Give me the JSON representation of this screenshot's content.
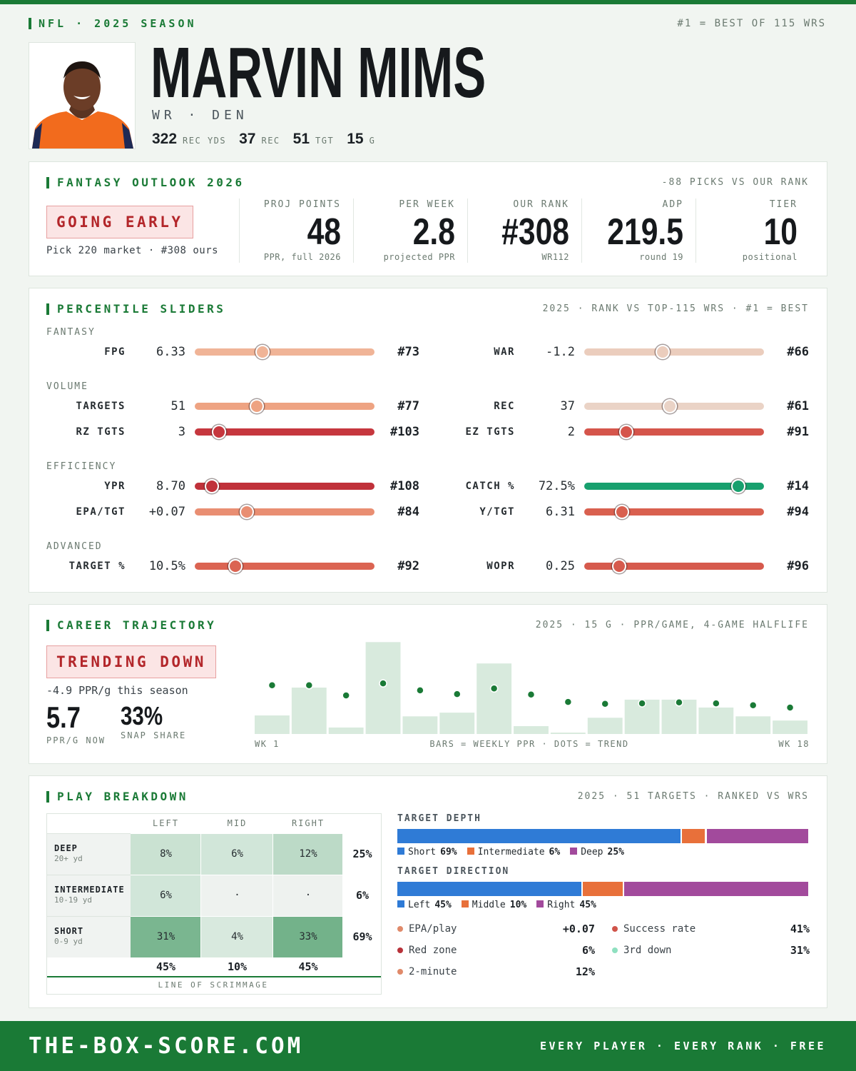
{
  "header": {
    "league": "NFL · 2025 SEASON",
    "scale_note": "#1 = BEST OF 115 WRS",
    "name": "MARVIN MIMS",
    "position": "WR · DEN",
    "stats": [
      {
        "value": "322",
        "label": "REC YDS"
      },
      {
        "value": "37",
        "label": "REC"
      },
      {
        "value": "51",
        "label": "TGT"
      },
      {
        "value": "15",
        "label": "G"
      }
    ]
  },
  "outlook": {
    "title": "FANTASY OUTLOOK 2026",
    "note": "-88 PICKS VS OUR RANK",
    "badge": "GOING EARLY",
    "badge_sub": "Pick 220 market · #308 ours",
    "metrics": [
      {
        "label": "PROJ POINTS",
        "value": "48",
        "sub": "PPR, full 2026"
      },
      {
        "label": "PER WEEK",
        "value": "2.8",
        "sub": "projected PPR"
      },
      {
        "label": "OUR RANK",
        "value": "#308",
        "sub": "WR112"
      },
      {
        "label": "ADP",
        "value": "219.5",
        "sub": "round 19"
      },
      {
        "label": "TIER",
        "value": "10",
        "sub": "positional"
      }
    ]
  },
  "sliders": {
    "title": "PERCENTILE SLIDERS",
    "note": "2025 · RANK VS TOP-115 WRS · #1 = BEST",
    "xlim": [
      115,
      1
    ],
    "groups": [
      {
        "name": "FANTASY",
        "rows": [
          [
            {
              "label": "FPG",
              "value": "6.33",
              "rank": {
                "value": 73,
                "label": "#73"
              },
              "color": "#f0b497"
            },
            {
              "label": "WAR",
              "value": "-1.2",
              "rank": {
                "value": 66,
                "label": "#66"
              },
              "color": "#ebcdbd"
            }
          ]
        ]
      },
      {
        "name": "VOLUME",
        "rows": [
          [
            {
              "label": "TARGETS",
              "value": "51",
              "rank": {
                "value": 77,
                "label": "#77"
              },
              "color": "#eea382"
            },
            {
              "label": "REC",
              "value": "37",
              "rank": {
                "value": 61,
                "label": "#61"
              },
              "color": "#ead3c6"
            }
          ],
          [
            {
              "label": "RZ TGTS",
              "value": "3",
              "rank": {
                "value": 103,
                "label": "#103"
              },
              "color": "#c6373e"
            },
            {
              "label": "EZ TGTS",
              "value": "2",
              "rank": {
                "value": 91,
                "label": "#91"
              },
              "color": "#d5554b"
            }
          ]
        ]
      },
      {
        "name": "EFFICIENCY",
        "rows": [
          [
            {
              "label": "YPR",
              "value": "8.70",
              "rank": {
                "value": 108,
                "label": "#108"
              },
              "color": "#c0313a"
            },
            {
              "label": "CATCH %",
              "value": "72.5%",
              "rank": {
                "value": 14,
                "label": "#14"
              },
              "color": "#18a06e"
            }
          ],
          [
            {
              "label": "EPA/TGT",
              "value": "+0.07",
              "rank": {
                "value": 84,
                "label": "#84"
              },
              "color": "#e98e72"
            },
            {
              "label": "Y/TGT",
              "value": "6.31",
              "rank": {
                "value": 94,
                "label": "#94"
              },
              "color": "#d9604f"
            }
          ]
        ]
      },
      {
        "name": "ADVANCED",
        "rows": [
          [
            {
              "label": "TARGET %",
              "value": "10.5%",
              "rank": {
                "value": 92,
                "label": "#92"
              },
              "color": "#db6452"
            },
            {
              "label": "WOPR",
              "value": "0.25",
              "rank": {
                "value": 96,
                "label": "#96"
              },
              "color": "#d65a4d"
            }
          ]
        ]
      }
    ]
  },
  "career": {
    "title": "CAREER TRAJECTORY",
    "note": "2025 · 15 G · PPR/GAME, 4-GAME HALFLIFE",
    "badge": "TRENDING DOWN",
    "change": "-4.9 PPR/g this season",
    "now": {
      "value": "5.7",
      "label": "PPR/G NOW"
    },
    "snap": {
      "value": "33%",
      "label": "SNAP SHARE"
    },
    "chart_data": {
      "type": "bar",
      "categories": [
        "WK 1",
        null,
        null,
        null,
        null,
        null,
        null,
        null,
        null,
        null,
        null,
        null,
        null,
        null,
        "WK 18"
      ],
      "x_note": "BARS = WEEKLY PPR · DOTS = TREND",
      "values": [
        4.0,
        10.0,
        1.4,
        19.8,
        3.8,
        4.6,
        15.2,
        1.7,
        0.3,
        3.5,
        7.4,
        7.4,
        5.7,
        3.8,
        2.9
      ],
      "trend": [
        10.5,
        10.5,
        8.3,
        10.9,
        9.4,
        8.6,
        9.8,
        8.5,
        6.9,
        6.5,
        6.6,
        6.8,
        6.6,
        6.2,
        5.7
      ],
      "color": "#d8eadd",
      "trend_color": "#1a7a36",
      "ylim": [
        0,
        20
      ]
    }
  },
  "breakdown": {
    "title": "PLAY BREAKDOWN",
    "note": "2025 · 51 TARGETS · RANKED VS WRS",
    "table": {
      "columns": [
        "LEFT",
        "MID",
        "RIGHT"
      ],
      "rows": [
        {
          "name": "DEEP",
          "sub": "20+ yd",
          "cells": [
            "8%",
            "6%",
            "12%"
          ],
          "total": "25%"
        },
        {
          "name": "INTERMEDIATE",
          "sub": "10-19 yd",
          "cells": [
            "6%",
            "·",
            "·"
          ],
          "total": "6%"
        },
        {
          "name": "SHORT",
          "sub": "0-9 yd",
          "cells": [
            "31%",
            "4%",
            "33%"
          ],
          "total": "69%"
        }
      ],
      "column_totals": [
        "45%",
        "10%",
        "45%"
      ],
      "footer": "LINE OF SCRIMMAGE"
    },
    "bars": [
      {
        "title": "TARGET DEPTH",
        "segments": [
          {
            "name": "Short",
            "value": 69,
            "label": "69%",
            "color": "#2f7bd6"
          },
          {
            "name": "Intermediate",
            "value": 6,
            "label": "6%",
            "color": "#e8703a"
          },
          {
            "name": "Deep",
            "value": 25,
            "label": "25%",
            "color": "#a24a9c"
          }
        ]
      },
      {
        "title": "TARGET DIRECTION",
        "segments": [
          {
            "name": "Left",
            "value": 45,
            "label": "45%",
            "color": "#2f7bd6"
          },
          {
            "name": "Middle",
            "value": 10,
            "label": "10%",
            "color": "#e8703a"
          },
          {
            "name": "Right",
            "value": 45,
            "label": "45%",
            "color": "#a24a9c"
          }
        ]
      }
    ],
    "stats": [
      {
        "label": "EPA/play",
        "value": "+0.07",
        "color": "#e08a6a"
      },
      {
        "label": "Success rate",
        "value": "41%",
        "color": "#d0544a"
      },
      {
        "label": "Red zone",
        "value": "6%",
        "color": "#b8323a"
      },
      {
        "label": "3rd down",
        "value": "31%",
        "color": "#8fe0c0"
      },
      {
        "label": "2-minute",
        "value": "12%",
        "color": "#e08a6a"
      }
    ]
  },
  "footer": {
    "site": "THE-BOX-SCORE.COM",
    "tagline": "EVERY PLAYER · EVERY RANK · FREE"
  }
}
